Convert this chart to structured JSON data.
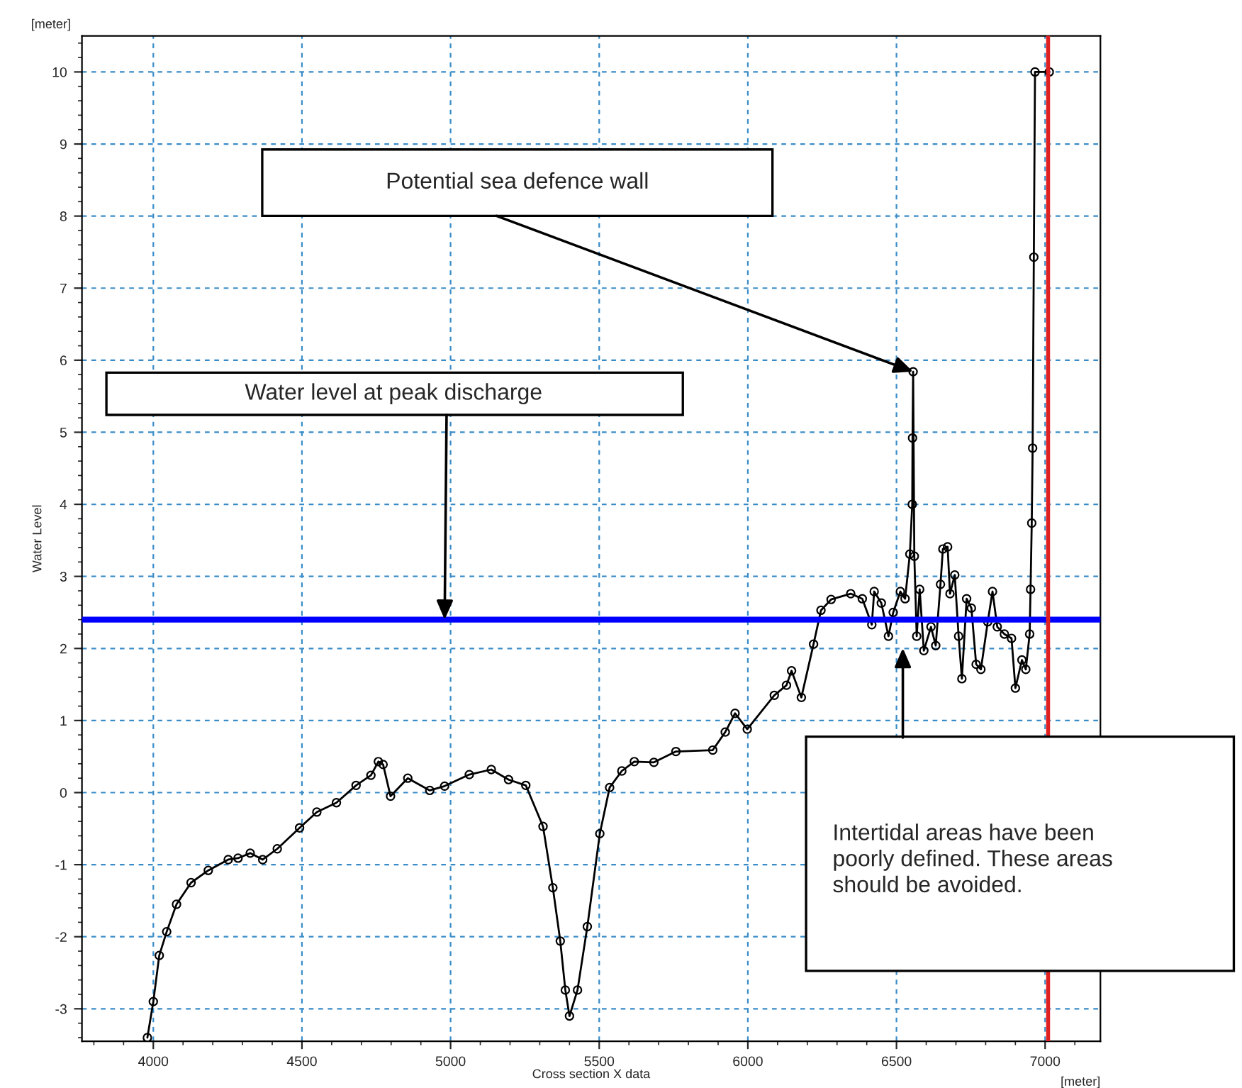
{
  "chart_data": {
    "type": "line",
    "xlabel": "Cross section X data",
    "ylabel": "Water Level",
    "xlim": [
      3760,
      7186
    ],
    "ylim": [
      -3.45,
      10.5
    ],
    "xticks": [
      4000,
      4500,
      5000,
      5500,
      6000,
      6500,
      7000
    ],
    "yticks": [
      -3,
      -2,
      -1,
      0,
      1,
      2,
      3,
      4,
      5,
      6,
      7,
      8,
      9,
      10
    ],
    "grid": true,
    "marker": "circle",
    "line_style": "solid",
    "series": [
      {
        "color": "#000000",
        "x": [
          3980,
          4000,
          4020,
          4045,
          4078,
          4127,
          4185,
          4252,
          4285,
          4326,
          4368,
          4417,
          4492,
          4550,
          4616,
          4682,
          4732,
          4757,
          4773,
          4798,
          4856,
          4930,
          4980,
          5063,
          5137,
          5195,
          5253,
          5311,
          5344,
          5369,
          5386,
          5400,
          5427,
          5460,
          5502,
          5535,
          5576,
          5618,
          5684,
          5758,
          5882,
          5924,
          5957,
          5998,
          6089,
          6130,
          6147,
          6180,
          6221,
          6246,
          6280,
          6346,
          6385,
          6417,
          6425,
          6449,
          6473,
          6489,
          6513,
          6529,
          6545,
          6553,
          6554,
          6556,
          6560,
          6568,
          6578,
          6592,
          6616,
          6632,
          6648,
          6656,
          6672,
          6680,
          6696,
          6709,
          6720,
          6736,
          6752,
          6768,
          6784,
          6807,
          6823,
          6839,
          6863,
          6887,
          6900,
          6922,
          6935,
          6948,
          6951,
          6955,
          6958,
          6962,
          6966,
          7014
        ],
        "values": [
          -3.4,
          -2.9,
          -2.26,
          -1.93,
          -1.55,
          -1.25,
          -1.08,
          -0.93,
          -0.91,
          -0.84,
          -0.93,
          -0.78,
          -0.49,
          -0.27,
          -0.14,
          0.1,
          0.24,
          0.43,
          0.39,
          -0.05,
          0.2,
          0.03,
          0.09,
          0.25,
          0.32,
          0.18,
          0.1,
          -0.47,
          -1.32,
          -2.06,
          -2.74,
          -3.1,
          -2.74,
          -1.86,
          -0.57,
          0.07,
          0.3,
          0.43,
          0.42,
          0.57,
          0.59,
          0.84,
          1.1,
          0.88,
          1.35,
          1.49,
          1.69,
          1.32,
          2.06,
          2.53,
          2.68,
          2.76,
          2.69,
          2.33,
          2.79,
          2.63,
          2.17,
          2.5,
          2.79,
          2.69,
          3.31,
          4.0,
          4.92,
          5.84,
          3.28,
          2.17,
          2.82,
          1.97,
          2.3,
          2.04,
          2.89,
          3.38,
          3.41,
          2.76,
          3.02,
          2.17,
          1.58,
          2.69,
          2.56,
          1.78,
          1.71,
          2.37,
          2.79,
          2.3,
          2.2,
          2.14,
          1.45,
          1.84,
          1.71,
          2.2,
          2.82,
          3.74,
          4.78,
          7.43,
          10.0,
          10.0
        ]
      }
    ],
    "ref_lines": [
      {
        "axis": "y",
        "value": 2.4,
        "color": "#0000ff"
      },
      {
        "axis": "x",
        "value": 7010,
        "color": "#e02020"
      }
    ],
    "annotations": [
      {
        "text": "Potential sea defence wall",
        "x": 6556,
        "y": 5.84
      },
      {
        "text": "Water level at peak discharge",
        "x": 4980,
        "y": 2.4
      },
      "Intertidal areas have been\npoorly defined. These areas\nshould be avoided.",
      "[meter]",
      "[meter]"
    ]
  }
}
